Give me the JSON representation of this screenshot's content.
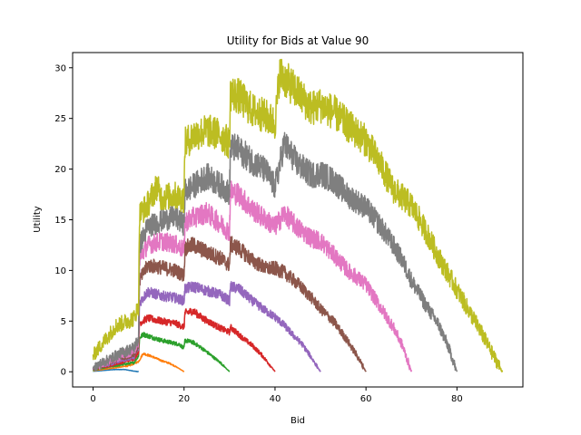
{
  "chart_data": {
    "type": "line",
    "title": "Utility for Bids at Value 90",
    "xlabel": "Bid",
    "ylabel": "Utility",
    "xlim": [
      -4.5,
      94.5
    ],
    "ylim": [
      -1.5,
      31.5
    ],
    "xticks": [
      0,
      20,
      40,
      60,
      80
    ],
    "yticks": [
      0,
      5,
      10,
      15,
      20,
      25,
      30
    ],
    "grid": false,
    "legend": "none",
    "series": [
      {
        "color": "#1f77b4",
        "points": [
          [
            0,
            0.05
          ],
          [
            2,
            0.12
          ],
          [
            4,
            0.2
          ],
          [
            5,
            0.22
          ],
          [
            7,
            0.22
          ],
          [
            8.5,
            0.1
          ],
          [
            10,
            0.0
          ]
        ]
      },
      {
        "color": "#ff7f0e",
        "points": [
          [
            0,
            0.1
          ],
          [
            5,
            0.4
          ],
          [
            8,
            0.6
          ],
          [
            10,
            1.0
          ],
          [
            11,
            1.8
          ],
          [
            13,
            1.5
          ],
          [
            15,
            1.1
          ],
          [
            17,
            0.8
          ],
          [
            19,
            0.3
          ],
          [
            20,
            0.0
          ]
        ]
      },
      {
        "color": "#2ca02c",
        "points": [
          [
            0,
            0.15
          ],
          [
            5,
            0.6
          ],
          [
            9,
            0.9
          ],
          [
            10,
            1.6
          ],
          [
            10.2,
            3.3
          ],
          [
            11,
            3.7
          ],
          [
            13,
            3.4
          ],
          [
            15,
            3.1
          ],
          [
            19,
            2.7
          ],
          [
            20,
            2.3
          ],
          [
            20.2,
            3.1
          ],
          [
            22,
            2.9
          ],
          [
            24,
            2.3
          ],
          [
            26,
            1.6
          ],
          [
            28,
            0.9
          ],
          [
            30,
            0.0
          ]
        ]
      },
      {
        "color": "#d62728",
        "points": [
          [
            0,
            0.2
          ],
          [
            5,
            0.8
          ],
          [
            9,
            1.3
          ],
          [
            10,
            2.0
          ],
          [
            10.2,
            4.8
          ],
          [
            12,
            5.3
          ],
          [
            15,
            5.0
          ],
          [
            18,
            4.8
          ],
          [
            20,
            4.4
          ],
          [
            20.2,
            5.8
          ],
          [
            22,
            6.0
          ],
          [
            24,
            5.3
          ],
          [
            26,
            4.8
          ],
          [
            28,
            4.3
          ],
          [
            30,
            3.9
          ],
          [
            30.2,
            4.4
          ],
          [
            33,
            3.3
          ],
          [
            35,
            2.6
          ],
          [
            37,
            1.7
          ],
          [
            39,
            0.6
          ],
          [
            40,
            0.0
          ]
        ]
      },
      {
        "color": "#9467bd",
        "points": [
          [
            0,
            0.25
          ],
          [
            5,
            1.0
          ],
          [
            9,
            1.5
          ],
          [
            10,
            2.3
          ],
          [
            10.2,
            6.8
          ],
          [
            12,
            7.9
          ],
          [
            15,
            7.5
          ],
          [
            18,
            7.3
          ],
          [
            20,
            7.0
          ],
          [
            20.2,
            8.2
          ],
          [
            22,
            8.4
          ],
          [
            25,
            8.0
          ],
          [
            28,
            7.6
          ],
          [
            30,
            7.0
          ],
          [
            30.2,
            8.4
          ],
          [
            32,
            8.2
          ],
          [
            35,
            7.0
          ],
          [
            38,
            6.0
          ],
          [
            40,
            5.4
          ],
          [
            42,
            4.6
          ],
          [
            44,
            3.6
          ],
          [
            46,
            2.7
          ],
          [
            48,
            1.4
          ],
          [
            50,
            0.0
          ]
        ]
      },
      {
        "color": "#8c564b",
        "points": [
          [
            0,
            0.3
          ],
          [
            5,
            1.2
          ],
          [
            9,
            1.8
          ],
          [
            10,
            2.6
          ],
          [
            10.2,
            9.0
          ],
          [
            12,
            10.5
          ],
          [
            15,
            10.3
          ],
          [
            18,
            10.0
          ],
          [
            20,
            9.5
          ],
          [
            20.2,
            12.2
          ],
          [
            22,
            12.5
          ],
          [
            25,
            11.8
          ],
          [
            28,
            11.2
          ],
          [
            30,
            10.5
          ],
          [
            30.2,
            12.6
          ],
          [
            32,
            12.2
          ],
          [
            35,
            11.0
          ],
          [
            38,
            10.2
          ],
          [
            40,
            10.2
          ],
          [
            42,
            9.8
          ],
          [
            45,
            8.7
          ],
          [
            48,
            7.3
          ],
          [
            50,
            6.2
          ],
          [
            53,
            4.9
          ],
          [
            56,
            3.0
          ],
          [
            58,
            1.6
          ],
          [
            60,
            0.0
          ]
        ]
      },
      {
        "color": "#e377c2",
        "points": [
          [
            0,
            0.35
          ],
          [
            5,
            1.4
          ],
          [
            9,
            2.1
          ],
          [
            10,
            3.0
          ],
          [
            10.2,
            11.2
          ],
          [
            12,
            12.5
          ],
          [
            15,
            12.9
          ],
          [
            18,
            12.6
          ],
          [
            20,
            12.0
          ],
          [
            20.2,
            14.8
          ],
          [
            22,
            15.2
          ],
          [
            25,
            15.7
          ],
          [
            28,
            14.6
          ],
          [
            30,
            13.8
          ],
          [
            30.2,
            17.8
          ],
          [
            32,
            17.5
          ],
          [
            35,
            16.0
          ],
          [
            38,
            15.0
          ],
          [
            40,
            14.3
          ],
          [
            42,
            15.6
          ],
          [
            45,
            14.2
          ],
          [
            48,
            13.2
          ],
          [
            50,
            12.9
          ],
          [
            53,
            11.5
          ],
          [
            56,
            10.0
          ],
          [
            60,
            8.6
          ],
          [
            63,
            6.5
          ],
          [
            66,
            4.4
          ],
          [
            68,
            2.6
          ],
          [
            70,
            0.0
          ]
        ]
      },
      {
        "color": "#7f7f7f",
        "points": [
          [
            0,
            0.4
          ],
          [
            5,
            1.6
          ],
          [
            9,
            2.4
          ],
          [
            10,
            3.3
          ],
          [
            10.2,
            12.5
          ],
          [
            12,
            14.3
          ],
          [
            15,
            14.9
          ],
          [
            18,
            15.3
          ],
          [
            20,
            14.5
          ],
          [
            20.2,
            17.8
          ],
          [
            22,
            18.3
          ],
          [
            25,
            19.3
          ],
          [
            28,
            18.4
          ],
          [
            30,
            17.6
          ],
          [
            30.2,
            22.2
          ],
          [
            32,
            21.9
          ],
          [
            35,
            20.8
          ],
          [
            38,
            19.8
          ],
          [
            40,
            18.2
          ],
          [
            42,
            22.5
          ],
          [
            45,
            20.5
          ],
          [
            48,
            19.4
          ],
          [
            50,
            19.6
          ],
          [
            53,
            18.8
          ],
          [
            56,
            17.4
          ],
          [
            60,
            16.2
          ],
          [
            63,
            14.5
          ],
          [
            66,
            12.5
          ],
          [
            68,
            11.0
          ],
          [
            70,
            9.0
          ],
          [
            73,
            6.7
          ],
          [
            76,
            4.6
          ],
          [
            78,
            2.6
          ],
          [
            80,
            0.0
          ]
        ]
      },
      {
        "color": "#bcbd22",
        "points": [
          [
            0,
            1.6
          ],
          [
            5,
            4.5
          ],
          [
            9,
            5.3
          ],
          [
            10,
            6.5
          ],
          [
            10.2,
            15.5
          ],
          [
            12,
            16.5
          ],
          [
            14,
            18.3
          ],
          [
            15,
            17.2
          ],
          [
            18,
            17.4
          ],
          [
            20,
            17.0
          ],
          [
            20.2,
            22.5
          ],
          [
            22,
            23.3
          ],
          [
            25,
            23.8
          ],
          [
            28,
            23.4
          ],
          [
            30,
            22.5
          ],
          [
            30.2,
            27.5
          ],
          [
            32,
            27.2
          ],
          [
            35,
            25.8
          ],
          [
            38,
            25.2
          ],
          [
            40,
            24.5
          ],
          [
            41,
            29.4
          ],
          [
            43,
            28.5
          ],
          [
            45,
            27.5
          ],
          [
            48,
            26.0
          ],
          [
            50,
            26.3
          ],
          [
            53,
            25.6
          ],
          [
            56,
            24.3
          ],
          [
            60,
            22.8
          ],
          [
            63,
            20.6
          ],
          [
            66,
            18.0
          ],
          [
            68,
            17.2
          ],
          [
            70,
            16.4
          ],
          [
            73,
            14.0
          ],
          [
            76,
            11.3
          ],
          [
            79,
            8.9
          ],
          [
            82,
            6.5
          ],
          [
            85,
            4.2
          ],
          [
            88,
            1.6
          ],
          [
            90,
            0.0
          ]
        ]
      }
    ]
  }
}
